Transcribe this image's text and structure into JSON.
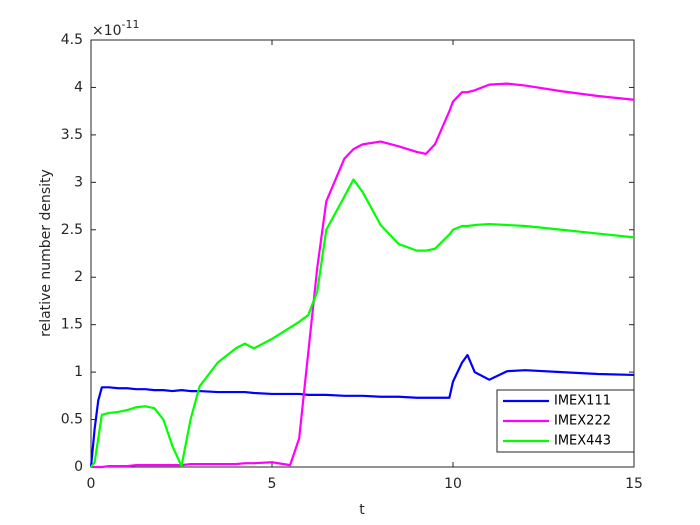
{
  "chart_data": {
    "type": "line",
    "x_label": "t",
    "y_label": "relative number density",
    "y_multiplier": "×10",
    "y_multiplier_exponent": "-11",
    "xlim": [
      0,
      15
    ],
    "ylim": [
      0,
      4.5
    ],
    "xticks": [
      0,
      5,
      10,
      15
    ],
    "yticks": [
      0,
      0.5,
      1,
      1.5,
      2,
      2.5,
      3,
      3.5,
      4,
      4.5
    ],
    "grid": false,
    "legend_position": "bottom-right",
    "x": [
      0,
      0.1,
      0.2,
      0.3,
      0.5,
      0.75,
      1,
      1.25,
      1.5,
      1.75,
      2,
      2.25,
      2.5,
      2.75,
      3,
      3.5,
      4,
      4.25,
      4.5,
      5,
      5.5,
      5.75,
      6,
      6.25,
      6.5,
      7,
      7.25,
      7.5,
      8,
      8.5,
      9,
      9.25,
      9.5,
      9.9,
      10,
      10.25,
      10.4,
      10.6,
      11,
      11.5,
      12,
      13,
      14,
      15
    ],
    "series": [
      {
        "name": "IMEX111",
        "color": "#0000ff",
        "values": [
          0,
          0.4,
          0.7,
          0.84,
          0.84,
          0.83,
          0.83,
          0.82,
          0.82,
          0.81,
          0.81,
          0.8,
          0.81,
          0.8,
          0.8,
          0.79,
          0.79,
          0.79,
          0.78,
          0.77,
          0.77,
          0.77,
          0.76,
          0.76,
          0.76,
          0.75,
          0.75,
          0.75,
          0.74,
          0.74,
          0.73,
          0.73,
          0.73,
          0.73,
          0.9,
          1.1,
          1.18,
          1.0,
          0.92,
          1.01,
          1.02,
          1.0,
          0.98,
          0.97
        ]
      },
      {
        "name": "IMEX222",
        "color": "#ff00ff",
        "values": [
          0,
          0,
          0,
          0,
          0.01,
          0.01,
          0.01,
          0.02,
          0.02,
          0.02,
          0.02,
          0.02,
          0.02,
          0.03,
          0.03,
          0.03,
          0.03,
          0.04,
          0.04,
          0.05,
          0.02,
          0.3,
          1.2,
          2.1,
          2.8,
          3.25,
          3.35,
          3.4,
          3.43,
          3.38,
          3.32,
          3.3,
          3.4,
          3.75,
          3.85,
          3.95,
          3.95,
          3.97,
          4.03,
          4.04,
          4.02,
          3.96,
          3.91,
          3.87
        ]
      },
      {
        "name": "IMEX443",
        "color": "#00ff00",
        "values": [
          0,
          0.05,
          0.3,
          0.55,
          0.57,
          0.58,
          0.6,
          0.63,
          0.64,
          0.62,
          0.5,
          0.22,
          0.01,
          0.5,
          0.85,
          1.1,
          1.25,
          1.3,
          1.25,
          1.35,
          1.47,
          1.53,
          1.6,
          1.85,
          2.5,
          2.85,
          3.03,
          2.9,
          2.55,
          2.35,
          2.28,
          2.28,
          2.3,
          2.45,
          2.5,
          2.54,
          2.54,
          2.55,
          2.56,
          2.55,
          2.54,
          2.5,
          2.46,
          2.42
        ]
      }
    ]
  }
}
